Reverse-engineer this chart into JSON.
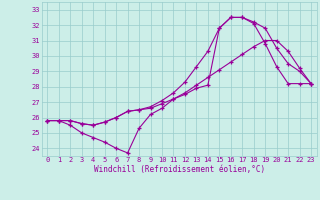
{
  "xlabel": "Windchill (Refroidissement éolien,°C)",
  "xlim": [
    -0.5,
    23.5
  ],
  "ylim": [
    23.5,
    33.5
  ],
  "yticks": [
    24,
    25,
    26,
    27,
    28,
    29,
    30,
    31,
    32,
    33
  ],
  "xticks": [
    0,
    1,
    2,
    3,
    4,
    5,
    6,
    7,
    8,
    9,
    10,
    11,
    12,
    13,
    14,
    15,
    16,
    17,
    18,
    19,
    20,
    21,
    22,
    23
  ],
  "bg_color": "#cceee8",
  "line_color": "#990099",
  "grid_color": "#99cccc",
  "line1_x": [
    0,
    1,
    2,
    3,
    4,
    5,
    6,
    7,
    8,
    9,
    10,
    11,
    12,
    13,
    14,
    15,
    16,
    17,
    18,
    19,
    20,
    21,
    22,
    23
  ],
  "line1_y": [
    25.8,
    25.8,
    25.5,
    25.0,
    24.7,
    24.4,
    24.0,
    23.7,
    25.3,
    26.2,
    26.6,
    27.2,
    27.5,
    27.9,
    28.1,
    31.8,
    32.5,
    32.5,
    32.1,
    30.8,
    29.3,
    28.2,
    28.2,
    28.2
  ],
  "line2_x": [
    0,
    1,
    2,
    3,
    4,
    5,
    6,
    7,
    8,
    9,
    10,
    11,
    12,
    13,
    14,
    15,
    16,
    17,
    18,
    19,
    20,
    21,
    22,
    23
  ],
  "line2_y": [
    25.8,
    25.8,
    25.8,
    25.6,
    25.5,
    25.7,
    26.0,
    26.4,
    26.5,
    26.6,
    26.9,
    27.2,
    27.6,
    28.1,
    28.6,
    29.1,
    29.6,
    30.1,
    30.6,
    31.0,
    31.0,
    30.3,
    29.2,
    28.2
  ],
  "line3_x": [
    0,
    1,
    2,
    3,
    4,
    5,
    6,
    7,
    8,
    9,
    10,
    11,
    12,
    13,
    14,
    15,
    16,
    17,
    18,
    19,
    20,
    21,
    22,
    23
  ],
  "line3_y": [
    25.8,
    25.8,
    25.8,
    25.6,
    25.5,
    25.7,
    26.0,
    26.4,
    26.5,
    26.7,
    27.1,
    27.6,
    28.3,
    29.3,
    30.3,
    31.8,
    32.5,
    32.5,
    32.2,
    31.8,
    30.5,
    29.5,
    29.0,
    28.2
  ]
}
